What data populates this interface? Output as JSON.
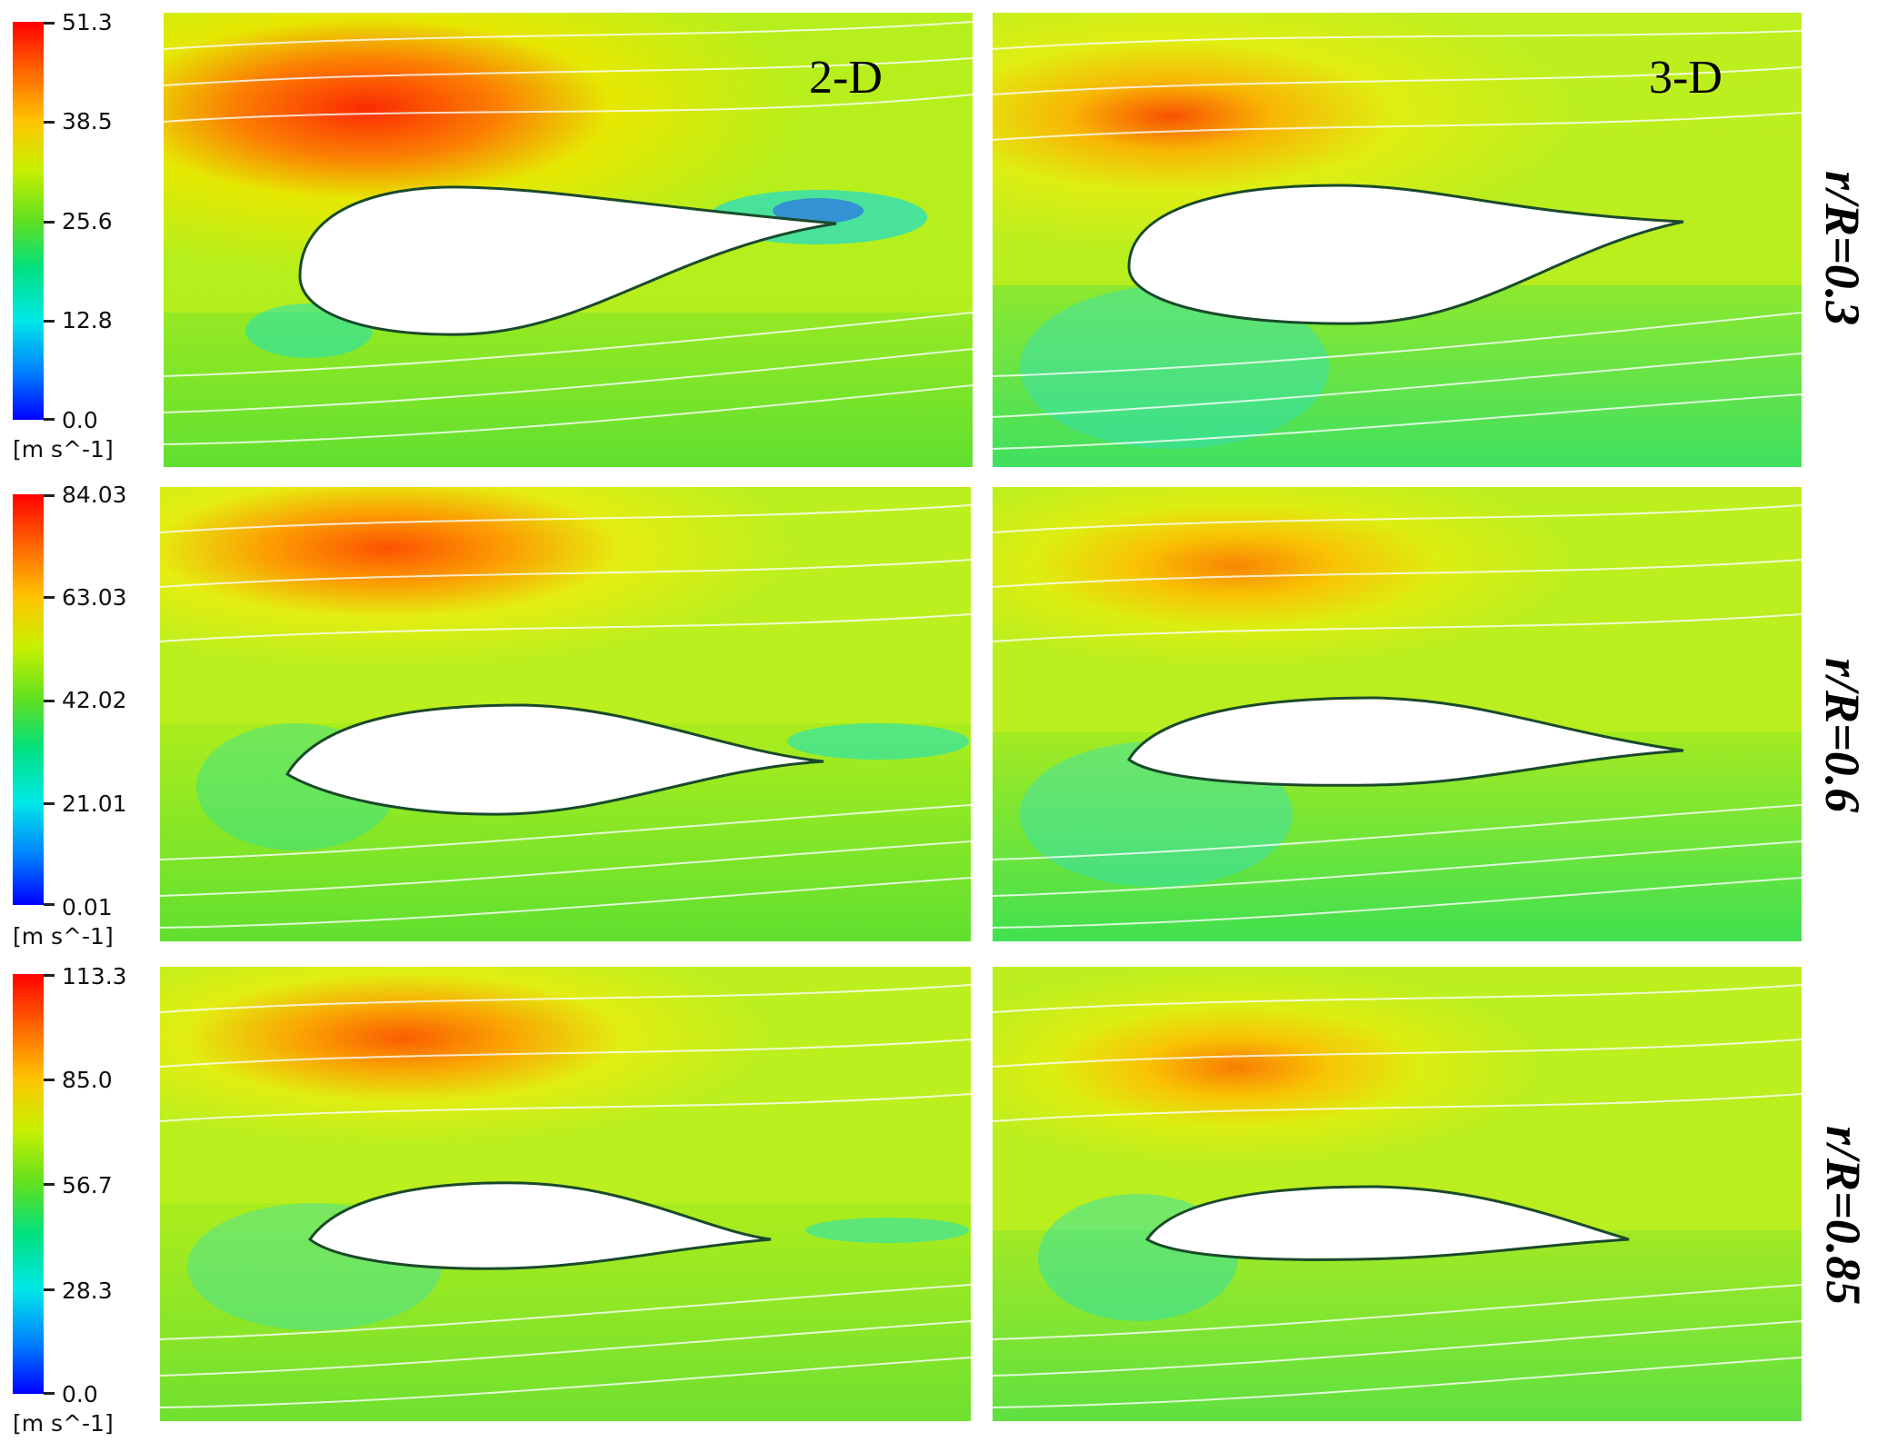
{
  "column_labels": [
    "2-D",
    "3-D"
  ],
  "rows": [
    {
      "label": "r/R=0.3",
      "colorbar": {
        "ticks": [
          "51.3",
          "38.5",
          "25.6",
          "12.8",
          "0.0"
        ],
        "unit": "[m s^-1]"
      }
    },
    {
      "label": "r/R=0.6",
      "colorbar": {
        "ticks": [
          "84.03",
          "63.03",
          "42.02",
          "21.01",
          "0.01"
        ],
        "unit": "[m s^-1]"
      }
    },
    {
      "label": "r/R=0.85",
      "colorbar": {
        "ticks": [
          "113.3",
          "85.0",
          "56.7",
          "28.3",
          "0.0"
        ],
        "unit": "[m s^-1]"
      }
    }
  ],
  "colors": {
    "high": "#ff2a00",
    "mid": "#b8ef18",
    "low": "#00e0e0",
    "min": "#0000ff"
  }
}
